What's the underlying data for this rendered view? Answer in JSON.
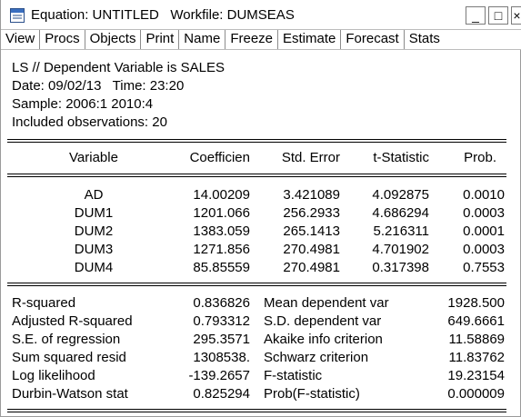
{
  "window": {
    "title_equation": "Equation: UNTITLED",
    "title_workfile": "Workfile: DUMSEAS",
    "minimize_label": "_",
    "maximize_label": "□",
    "close_label": "×"
  },
  "toolbar": {
    "buttons": [
      "View",
      "Procs",
      "Objects",
      "Print",
      "Name",
      "Freeze",
      "Estimate",
      "Forecast",
      "Stats"
    ]
  },
  "header": {
    "line1": "LS // Dependent Variable is SALES",
    "line2": "Date: 09/02/13   Time: 23:20",
    "line3": "Sample: 2006:1 2010:4",
    "line4": "Included observations: 20"
  },
  "coef_table": {
    "columns": [
      "Variable",
      "Coefficien",
      "Std. Error",
      "t-Statistic",
      "Prob."
    ],
    "rows": [
      [
        "AD",
        "14.00209",
        "3.421089",
        "4.092875",
        "0.0010"
      ],
      [
        "DUM1",
        "1201.066",
        "256.2933",
        "4.686294",
        "0.0003"
      ],
      [
        "DUM2",
        "1383.059",
        "265.1413",
        "5.216311",
        "0.0001"
      ],
      [
        "DUM3",
        "1271.856",
        "270.4981",
        "4.701902",
        "0.0003"
      ],
      [
        "DUM4",
        "85.85559",
        "270.4981",
        "0.317398",
        "0.7553"
      ]
    ]
  },
  "stats": {
    "rows": [
      [
        "R-squared",
        "0.836826",
        "Mean dependent var",
        "1928.500"
      ],
      [
        "Adjusted R-squared",
        "0.793312",
        "S.D. dependent var",
        "649.6661"
      ],
      [
        "S.E. of regression",
        "295.3571",
        "Akaike info criterion",
        "11.58869"
      ],
      [
        "Sum squared resid",
        "1308538.",
        "Schwarz criterion",
        "11.83762"
      ],
      [
        "Log likelihood",
        "-139.2657",
        "F-statistic",
        "19.23154"
      ],
      [
        "Durbin-Watson stat",
        "0.825294",
        "Prob(F-statistic)",
        "0.000009"
      ]
    ]
  }
}
